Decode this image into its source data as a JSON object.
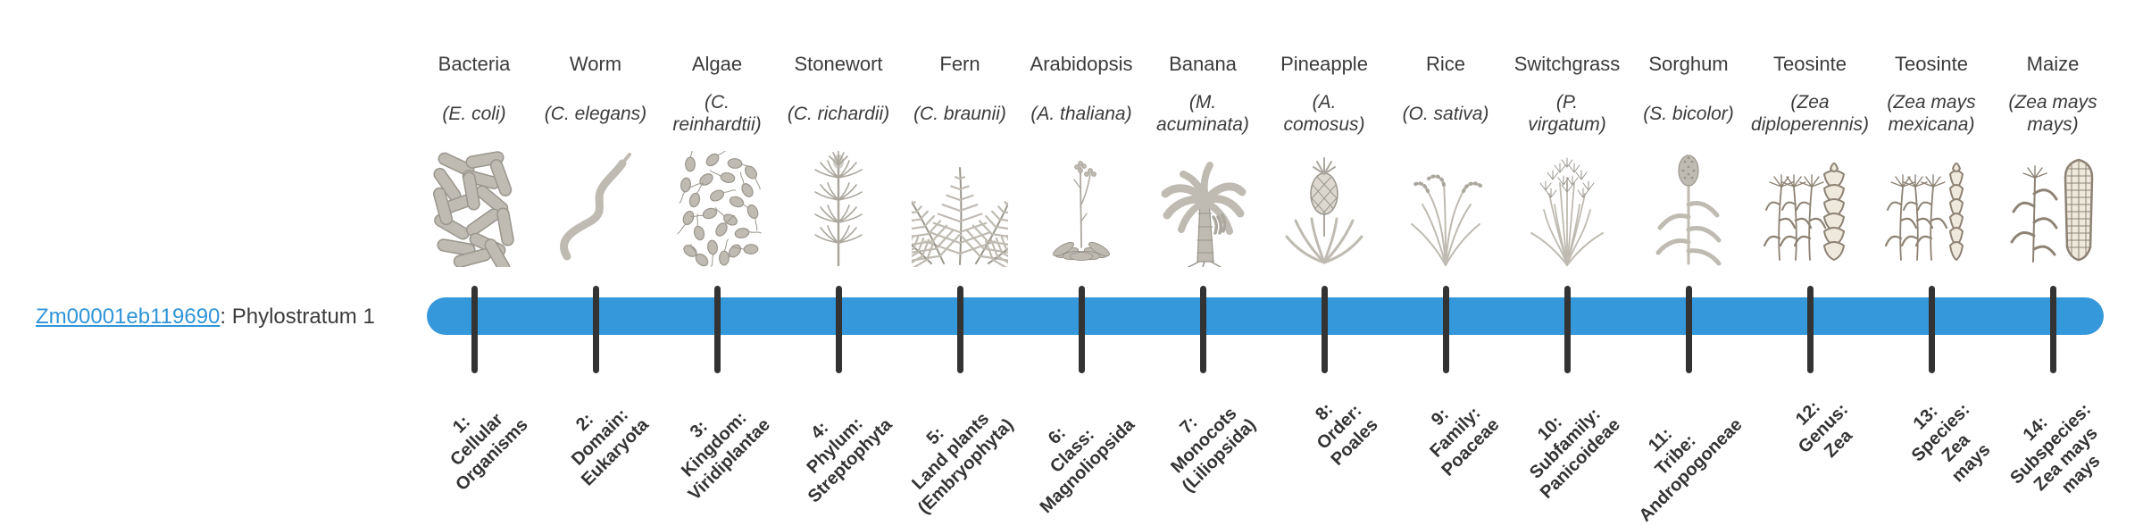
{
  "gene": {
    "id": "Zm00001eb119690",
    "label_suffix": ": Phylostratum 1"
  },
  "timeline": {
    "bar_color": "#3498db",
    "tick_color": "#333333",
    "link_color": "#3095d8"
  },
  "organisms": [
    {
      "common": "Bacteria",
      "scientific": "(E. coli)",
      "icon": "bacteria-icon",
      "stratum": "1:\nCellular\nOrganisms"
    },
    {
      "common": "Worm",
      "scientific": "(C. elegans)",
      "icon": "worm-icon",
      "stratum": "2:\nDomain:\nEukaryota"
    },
    {
      "common": "Algae",
      "scientific": "(C.\nreinhardtii)",
      "icon": "algae-icon",
      "stratum": "3:\nKingdom:\nViridiplantae"
    },
    {
      "common": "Stonewort",
      "scientific": "(C. richardii)",
      "icon": "stonewort-icon",
      "stratum": "4:\nPhylum:\nStreptophyta"
    },
    {
      "common": "Fern",
      "scientific": "(C. braunii)",
      "icon": "fern-icon",
      "stratum": "5:\nLand plants\n(Embryophyta)"
    },
    {
      "common": "Arabidopsis",
      "scientific": "(A. thaliana)",
      "icon": "arabidopsis-icon",
      "stratum": "6:\nClass:\nMagnoliopsida"
    },
    {
      "common": "Banana",
      "scientific": "(M.\nacuminata)",
      "icon": "banana-icon",
      "stratum": "7:\nMonocots\n(Liliopsida)"
    },
    {
      "common": "Pineapple",
      "scientific": "(A.\ncomosus)",
      "icon": "pineapple-icon",
      "stratum": "8:\nOrder:\nPoales"
    },
    {
      "common": "Rice",
      "scientific": "(O. sativa)",
      "icon": "rice-icon",
      "stratum": "9:\nFamily:\nPoaceae"
    },
    {
      "common": "Switchgrass",
      "scientific": "(P.\nvirgatum)",
      "icon": "switchgrass-icon",
      "stratum": "10:\nSubfamily:\nPanicoideae"
    },
    {
      "common": "Sorghum",
      "scientific": "(S. bicolor)",
      "icon": "sorghum-icon",
      "stratum": "11:\nTribe:\nAndropogoneae"
    },
    {
      "common": "Teosinte",
      "scientific": "(Zea\ndiploperennis)",
      "icon": "teosinte-diploperennis-icon",
      "stratum": "12:\nGenus:\nZea"
    },
    {
      "common": "Teosinte",
      "scientific": "(Zea mays\nmexicana)",
      "icon": "teosinte-mexicana-icon",
      "stratum": "13:\nSpecies:\nZea\nmays"
    },
    {
      "common": "Maize",
      "scientific": "(Zea mays\nmays)",
      "icon": "maize-icon",
      "stratum": "14:\nSubspecies:\nZea mays\nmays"
    }
  ]
}
